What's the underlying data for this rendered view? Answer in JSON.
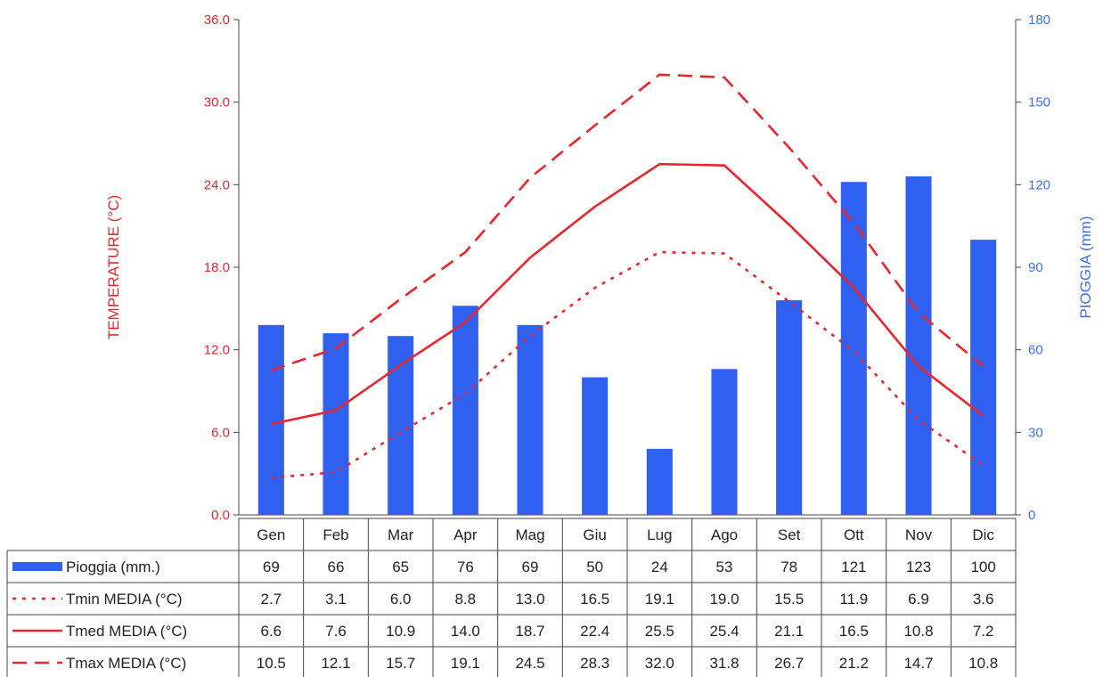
{
  "chart_data": {
    "type": "bar+line",
    "title": "",
    "categories": [
      "Gen",
      "Feb",
      "Mar",
      "Apr",
      "Mag",
      "Giu",
      "Lug",
      "Ago",
      "Set",
      "Ott",
      "Nov",
      "Dic"
    ],
    "y_left": {
      "label": "TEMPERATURE (°C)",
      "range": [
        0,
        36
      ],
      "ticks": [
        "0.0",
        "6.0",
        "12.0",
        "18.0",
        "24.0",
        "30.0",
        "36.0"
      ]
    },
    "y_right": {
      "label": "PIOGGIA (mm)",
      "range": [
        0,
        180
      ],
      "ticks": [
        "0",
        "30",
        "60",
        "90",
        "120",
        "150",
        "180"
      ]
    },
    "bars": {
      "name": "Pioggia (mm.)",
      "axis": "right",
      "color": "#3060f0",
      "values": [
        69,
        66,
        65,
        76,
        69,
        50,
        24,
        53,
        78,
        121,
        123,
        100
      ]
    },
    "series": [
      {
        "name": "Tmin MEDIA (°C)",
        "axis": "left",
        "style": "dotted",
        "color": "#e8262d",
        "values": [
          2.7,
          3.1,
          6.0,
          8.8,
          13.0,
          16.5,
          19.1,
          19.0,
          15.5,
          11.9,
          6.9,
          3.6
        ],
        "labels": [
          "2.7",
          "3.1",
          "6.0",
          "8.8",
          "13.0",
          "16.5",
          "19.1",
          "19.0",
          "15.5",
          "11.9",
          "6.9",
          "3.6"
        ]
      },
      {
        "name": "Tmed MEDIA (°C)",
        "axis": "left",
        "style": "solid",
        "color": "#e8262d",
        "values": [
          6.6,
          7.6,
          10.9,
          14.0,
          18.7,
          22.4,
          25.5,
          25.4,
          21.1,
          16.5,
          10.8,
          7.2
        ],
        "labels": [
          "6.6",
          "7.6",
          "10.9",
          "14.0",
          "18.7",
          "22.4",
          "25.5",
          "25.4",
          "21.1",
          "16.5",
          "10.8",
          "7.2"
        ]
      },
      {
        "name": "Tmax MEDIA (°C)",
        "axis": "left",
        "style": "dashed",
        "color": "#e8262d",
        "values": [
          10.5,
          12.1,
          15.7,
          19.1,
          24.5,
          28.3,
          32.0,
          31.8,
          26.7,
          21.2,
          14.7,
          10.8
        ],
        "labels": [
          "10.5",
          "12.1",
          "15.7",
          "19.1",
          "24.5",
          "28.3",
          "32.0",
          "31.8",
          "26.7",
          "21.2",
          "14.7",
          "10.8"
        ]
      }
    ],
    "data_table": true,
    "legend": "data-table-left",
    "grid": false
  }
}
